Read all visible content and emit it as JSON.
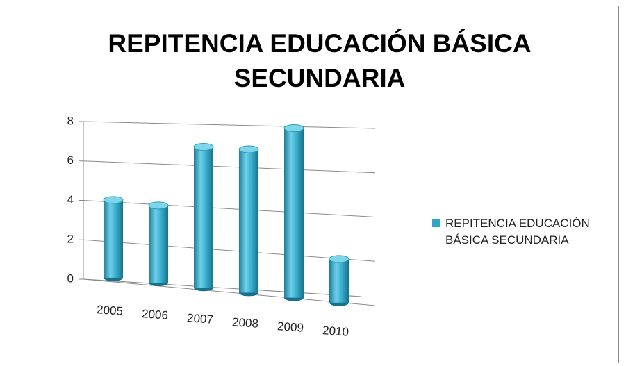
{
  "chart_data": {
    "type": "bar3d",
    "title": "REPITENCIA EDUCACIÓN BÁSICA SECUNDARIA",
    "categories": [
      "2005",
      "2006",
      "2007",
      "2008",
      "2009",
      "2010"
    ],
    "series": [
      {
        "name": "REPITENCIA EDUCACIÓN BÁSICA SECUNDARIA",
        "color": "#31a5c4",
        "values": [
          3.9,
          3.8,
          6.8,
          6.8,
          7.9,
          2
        ]
      }
    ],
    "ylim": [
      0,
      8
    ],
    "yticks": [
      0,
      2,
      4,
      6,
      8
    ],
    "grid": true,
    "legend": "right"
  }
}
